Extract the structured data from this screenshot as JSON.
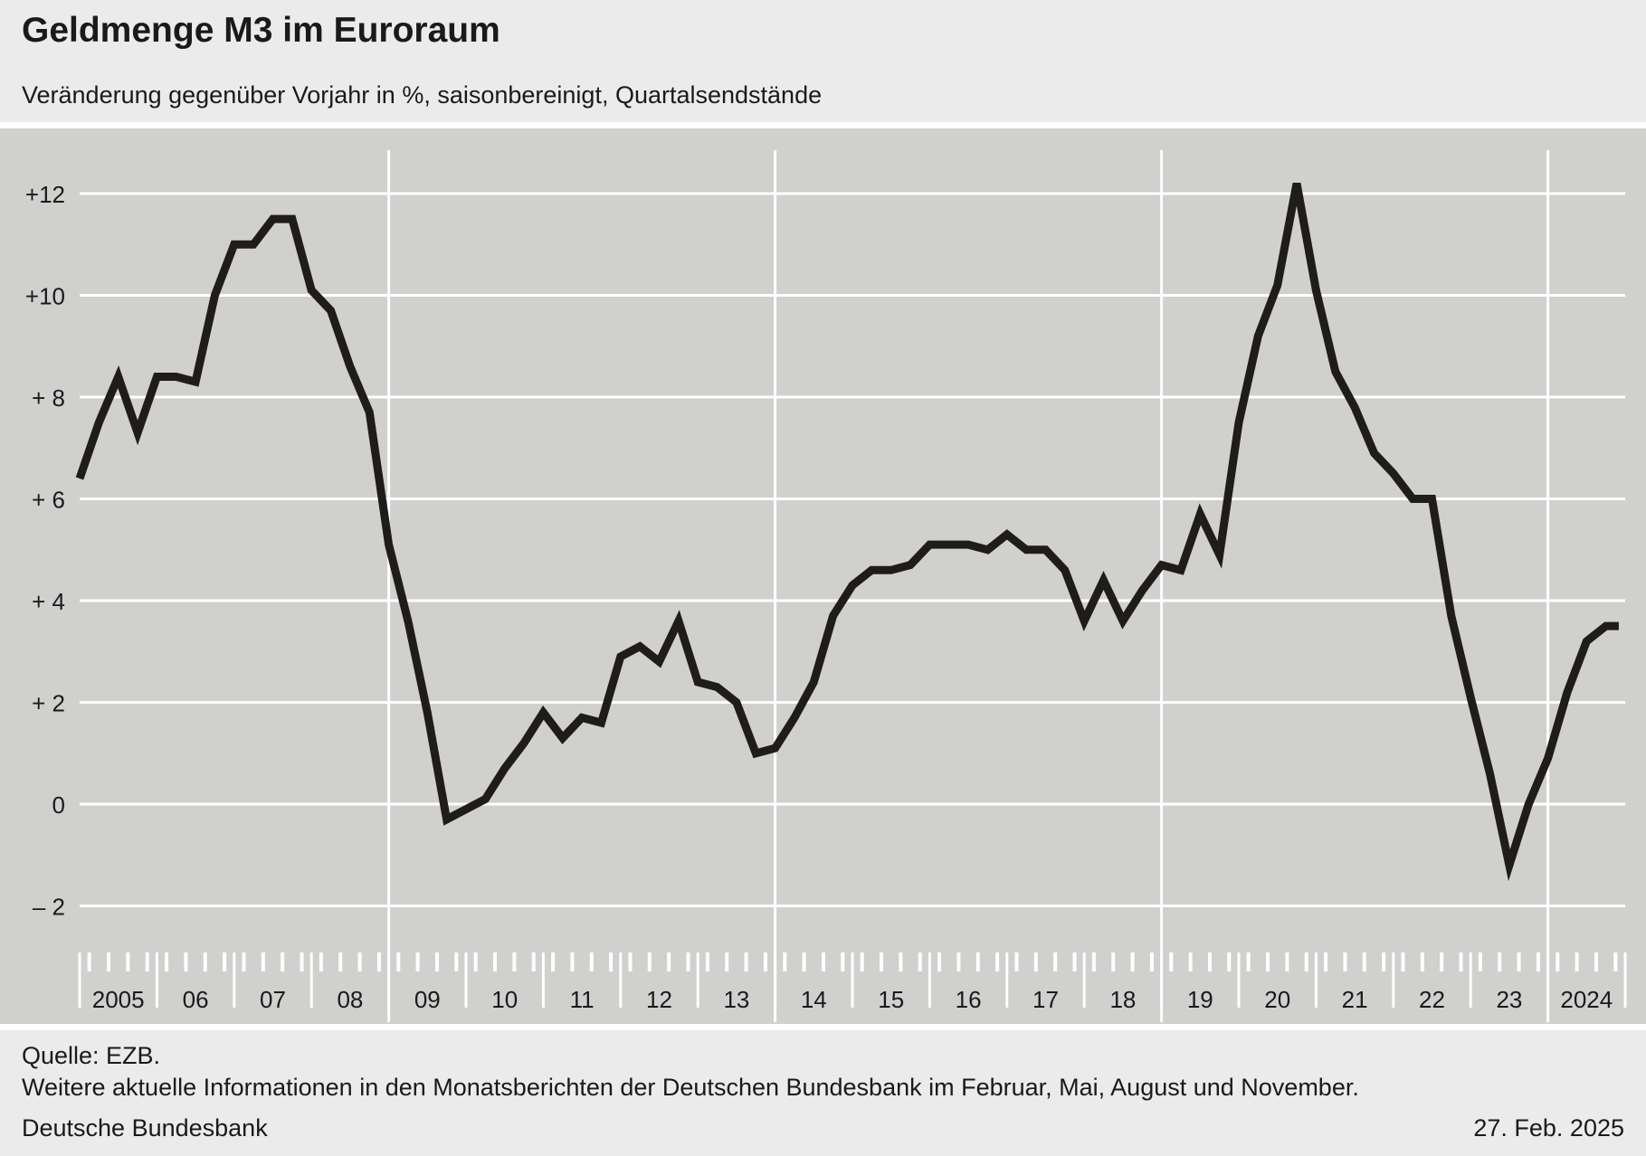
{
  "header": {
    "title": "Geldmenge M3 im Euroraum",
    "subtitle": "Veränderung gegenüber Vorjahr in %, saisonbereinigt, Quartalsendstände"
  },
  "footer": {
    "source": "Quelle: EZB.",
    "note": "Weitere aktuelle Informationen in den Monatsberichten der Deutschen Bundesbank im Februar, Mai, August und November.",
    "publisher": "Deutsche Bundesbank",
    "date": "27. Feb. 2025"
  },
  "colors": {
    "plot_background": "#d0d0ce",
    "page_background": "#ebebeb",
    "line": "#1f1c1b",
    "grid": "#ffffff"
  },
  "chart_data": {
    "type": "line",
    "title": "Geldmenge M3 im Euroraum",
    "subtitle": "Veränderung gegenüber Vorjahr in %, saisonbereinigt, Quartalsendstände",
    "ylim": [
      -3.2,
      12.6
    ],
    "yticks": [
      -2,
      0,
      2,
      4,
      6,
      8,
      10,
      12
    ],
    "ytick_labels": [
      "–  2",
      "0",
      "+  2",
      "+  4",
      "+  6",
      "+  8",
      "+10",
      "+12"
    ],
    "x_start": "2005-01",
    "x_end": "2024-12",
    "year_labels": [
      "2005",
      "06",
      "07",
      "08",
      "09",
      "10",
      "11",
      "12",
      "13",
      "14",
      "15",
      "16",
      "17",
      "18",
      "19",
      "20",
      "21",
      "22",
      "23",
      "2024"
    ],
    "vertical_lines_at_year_start": [
      "2009",
      "2014",
      "2019",
      "2024"
    ],
    "grid": true,
    "x": [
      "2005-01",
      "2005-04",
      "2005-07",
      "2005-10",
      "2006-01",
      "2006-04",
      "2006-07",
      "2006-10",
      "2007-01",
      "2007-04",
      "2007-07",
      "2007-10",
      "2008-01",
      "2008-04",
      "2008-07",
      "2008-10",
      "2009-01",
      "2009-04",
      "2009-07",
      "2009-10",
      "2010-01",
      "2010-04",
      "2010-07",
      "2010-10",
      "2011-01",
      "2011-04",
      "2011-07",
      "2011-10",
      "2012-01",
      "2012-04",
      "2012-07",
      "2012-10",
      "2013-01",
      "2013-04",
      "2013-07",
      "2013-10",
      "2014-01",
      "2014-04",
      "2014-07",
      "2014-10",
      "2015-01",
      "2015-04",
      "2015-07",
      "2015-10",
      "2016-01",
      "2016-04",
      "2016-07",
      "2016-10",
      "2017-01",
      "2017-04",
      "2017-07",
      "2017-10",
      "2018-01",
      "2018-04",
      "2018-07",
      "2018-10",
      "2019-01",
      "2019-04",
      "2019-07",
      "2019-10",
      "2020-01",
      "2020-04",
      "2020-07",
      "2020-10",
      "2021-01",
      "2021-04",
      "2021-07",
      "2021-10",
      "2022-01",
      "2022-04",
      "2022-07",
      "2022-10",
      "2023-01",
      "2023-04",
      "2023-07",
      "2023-10",
      "2024-01",
      "2024-04",
      "2024-07",
      "2024-10",
      "2024-12"
    ],
    "series": [
      {
        "values": [
          6.4,
          7.5,
          8.4,
          7.3,
          8.4,
          8.4,
          8.3,
          10.0,
          11.0,
          11.0,
          11.5,
          11.5,
          10.1,
          9.7,
          8.6,
          7.7,
          5.1,
          3.6,
          1.8,
          -0.3,
          -0.1,
          0.1,
          0.7,
          1.2,
          1.8,
          1.3,
          1.7,
          1.6,
          2.9,
          3.1,
          2.8,
          3.6,
          2.4,
          2.3,
          2.0,
          1.0,
          1.1,
          1.7,
          2.4,
          3.7,
          4.3,
          4.6,
          4.6,
          4.7,
          5.1,
          5.1,
          5.1,
          5.0,
          5.3,
          5.0,
          5.0,
          4.6,
          3.6,
          4.4,
          3.6,
          4.2,
          4.7,
          4.6,
          5.7,
          4.9,
          7.5,
          9.2,
          10.2,
          12.2,
          10.1,
          8.5,
          7.8,
          6.9,
          6.5,
          6.0,
          6.0,
          3.7,
          2.1,
          0.6,
          -1.2,
          0.0,
          0.9,
          2.2,
          3.2,
          3.5,
          3.5
        ]
      }
    ]
  }
}
